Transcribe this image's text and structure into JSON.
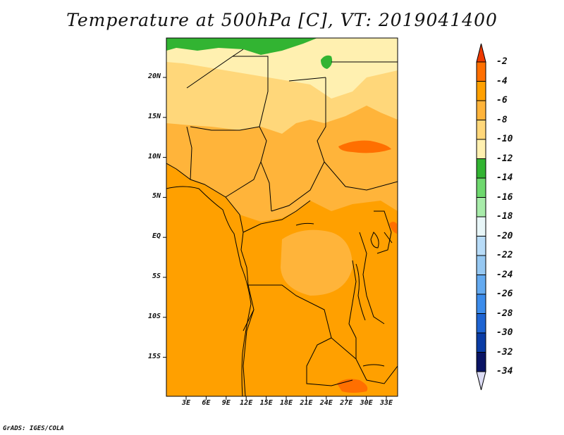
{
  "title": "Temperature at 500hPa [C], VT: 2019041400",
  "credit": "GrADS: IGES/COLA",
  "map": {
    "lat_labels": [
      "20N",
      "15N",
      "10N",
      "5N",
      "EQ",
      "5S",
      "10S",
      "15S"
    ],
    "lon_labels": [
      "3E",
      "6E",
      "9E",
      "12E",
      "15E",
      "18E",
      "21E",
      "24E",
      "27E",
      "30E",
      "33E"
    ]
  },
  "colorbar": {
    "labels": [
      "-2",
      "-4",
      "-6",
      "-8",
      "-10",
      "-12",
      "-14",
      "-16",
      "-18",
      "-20",
      "-22",
      "-24",
      "-26",
      "-28",
      "-30",
      "-32",
      "-34"
    ],
    "colors": [
      "#ee3900",
      "#ff6f00",
      "#ffa000",
      "#ffb43a",
      "#ffd77a",
      "#fff0b0",
      "#32b432",
      "#6ed86e",
      "#a8ecaa",
      "#e8f6f8",
      "#b8dcf8",
      "#96c8f2",
      "#64aaf0",
      "#3c8ceb",
      "#1e64d2",
      "#0a3ca5",
      "#0a1464"
    ],
    "over_color": "#ee3900",
    "under_color": "#dcdcf4"
  }
}
